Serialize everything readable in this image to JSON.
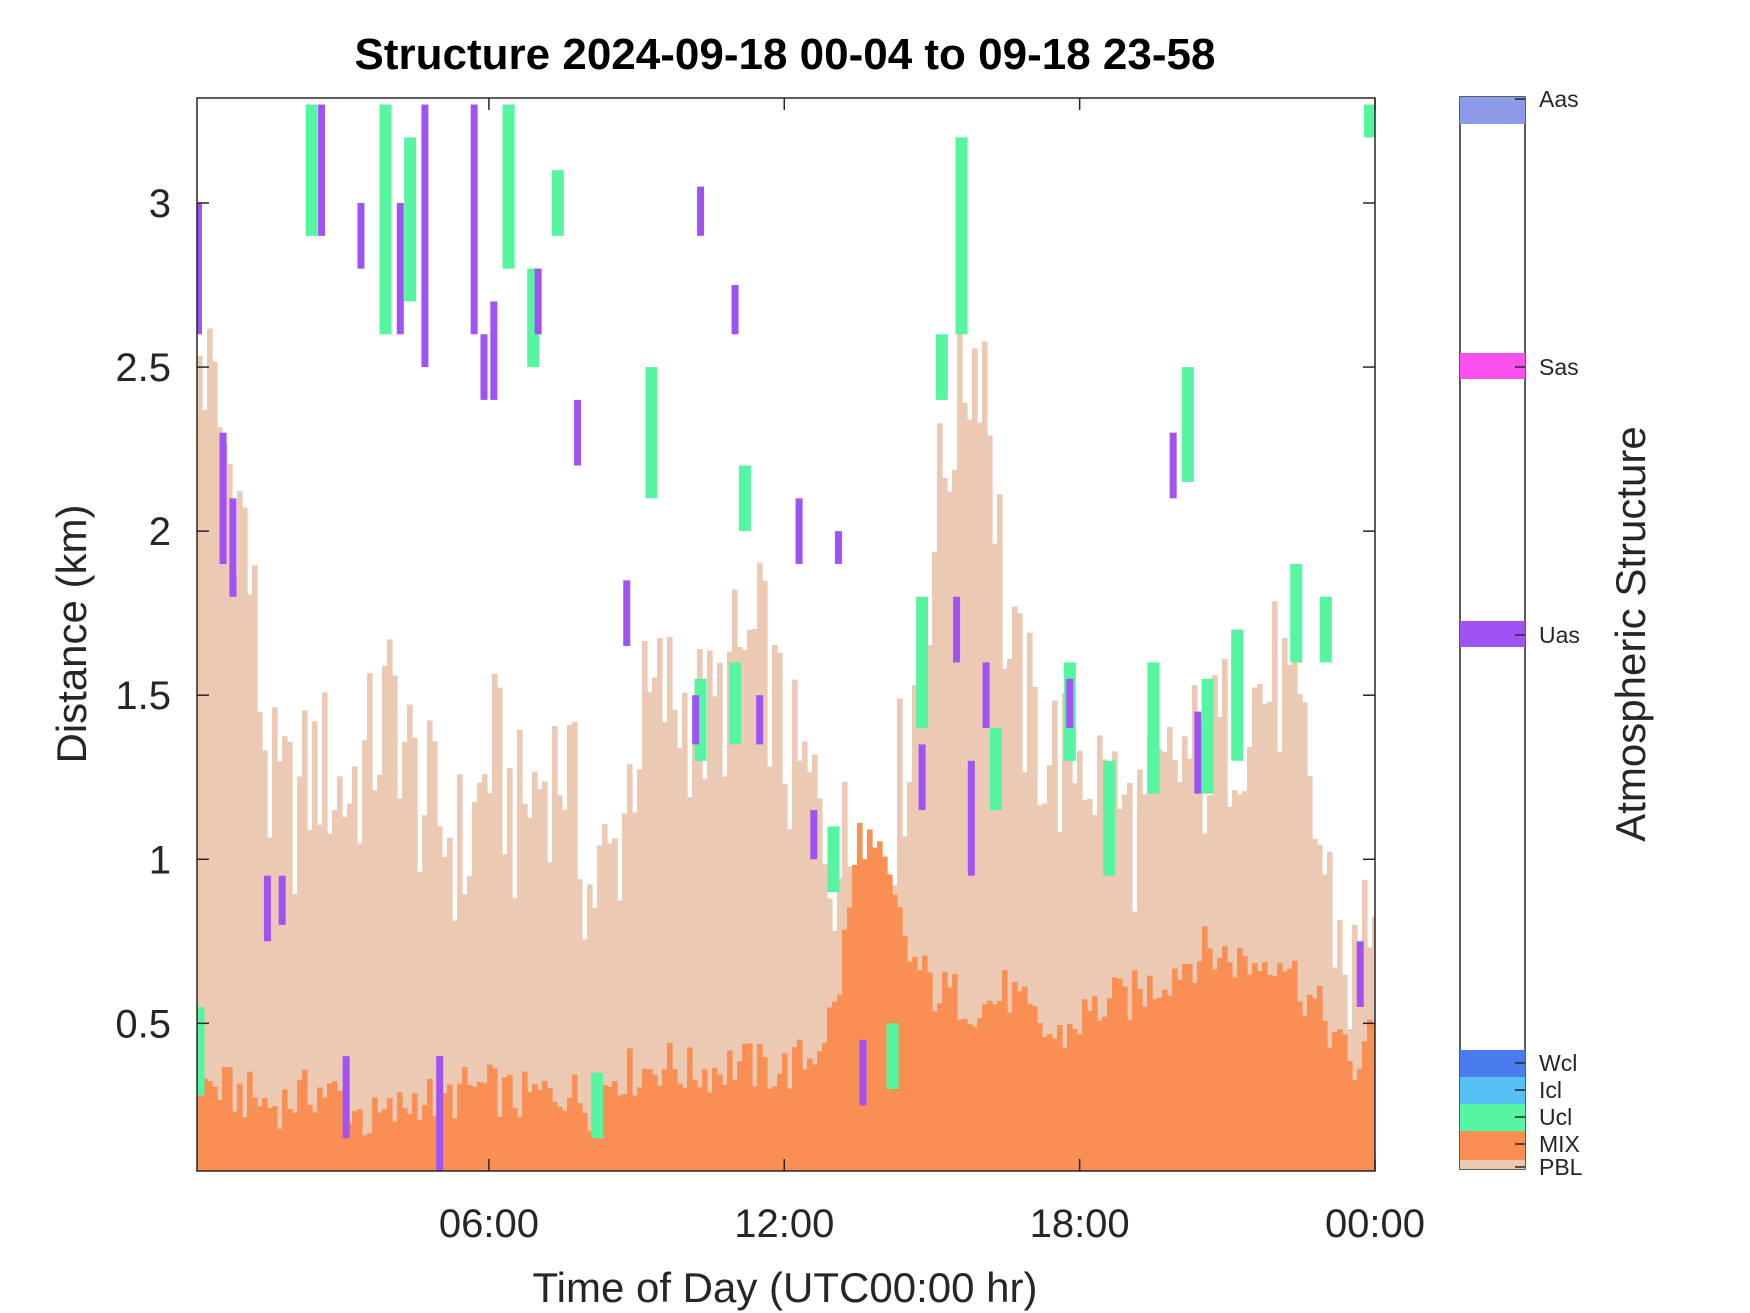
{
  "chart_data": {
    "type": "heatmap",
    "title": "Structure 2024-09-18 00-04 to 09-18 23-58",
    "xlabel": "Time of Day (UTC00:00 hr)",
    "ylabel": "Distance (km)",
    "colorbar_label": "Atmospheric Structure",
    "xlim_hours": [
      0.07,
      24.0
    ],
    "ylim_km": [
      0.05,
      3.32
    ],
    "x_ticks": [
      {
        "value": 6,
        "label": "06:00"
      },
      {
        "value": 12,
        "label": "12:00"
      },
      {
        "value": 18,
        "label": "18:00"
      },
      {
        "value": 24,
        "label": "00:00"
      }
    ],
    "y_ticks": [
      {
        "value": 0.5,
        "label": "0.5"
      },
      {
        "value": 1,
        "label": "1"
      },
      {
        "value": 1.5,
        "label": "1.5"
      },
      {
        "value": 2,
        "label": "2"
      },
      {
        "value": 2.5,
        "label": "2.5"
      },
      {
        "value": 3,
        "label": "3"
      }
    ],
    "categories": [
      {
        "code": "PBL",
        "label": "PBL",
        "color": "#ecc9b3"
      },
      {
        "code": "MIX",
        "label": "MIX",
        "color": "#f98f53"
      },
      {
        "code": "Ucl",
        "label": "Ucl",
        "color": "#55f5a1"
      },
      {
        "code": "Icl",
        "label": "Icl",
        "color": "#56c1f5"
      },
      {
        "code": "Wcl",
        "label": "Wcl",
        "color": "#4a7cf0"
      },
      {
        "code": "Uas",
        "label": "Uas",
        "color": "#a152f2"
      },
      {
        "code": "Sas",
        "label": "Sas",
        "color": "#fa50ee"
      },
      {
        "code": "Aas",
        "label": "Aas",
        "color": "#8b9be8"
      }
    ],
    "series": [
      {
        "name": "PBL",
        "unit": "km",
        "x_hours": [
          0.0,
          0.5,
          1.0,
          1.5,
          2.0,
          2.5,
          3.0,
          3.5,
          4.0,
          4.5,
          5.0,
          5.5,
          6.0,
          6.5,
          7.0,
          7.5,
          8.0,
          8.5,
          9.0,
          9.5,
          10.0,
          10.5,
          11.0,
          11.5,
          12.0,
          12.5,
          13.0,
          13.5,
          14.0,
          14.5,
          15.0,
          15.5,
          16.0,
          16.5,
          17.0,
          17.5,
          18.0,
          18.5,
          19.0,
          19.5,
          20.0,
          20.5,
          21.0,
          21.5,
          22.0,
          22.5,
          23.0,
          23.5,
          24.0
        ],
        "top_km": [
          2.6,
          2.3,
          2.0,
          1.2,
          1.15,
          1.3,
          1.2,
          1.3,
          1.5,
          1.2,
          1.1,
          1.0,
          1.35,
          1.1,
          1.25,
          1.3,
          0.9,
          1.0,
          1.4,
          1.5,
          1.45,
          1.4,
          1.6,
          1.65,
          1.3,
          1.2,
          1.0,
          1.05,
          1.0,
          1.4,
          2.0,
          2.45,
          2.6,
          1.6,
          1.4,
          1.3,
          1.35,
          1.2,
          1.1,
          1.15,
          1.3,
          1.3,
          1.4,
          1.5,
          1.55,
          1.3,
          0.9,
          0.6,
          1.0
        ]
      },
      {
        "name": "MIX",
        "unit": "km",
        "x_hours": [
          0.0,
          0.5,
          1.0,
          1.5,
          2.0,
          2.5,
          3.0,
          3.5,
          4.0,
          4.5,
          5.0,
          5.5,
          6.0,
          6.5,
          7.0,
          7.5,
          8.0,
          8.5,
          9.0,
          9.5,
          10.0,
          10.5,
          11.0,
          11.5,
          12.0,
          12.5,
          13.0,
          13.5,
          14.0,
          14.5,
          15.0,
          15.5,
          16.0,
          16.5,
          17.0,
          17.5,
          18.0,
          18.5,
          19.0,
          19.5,
          20.0,
          20.5,
          21.0,
          21.5,
          22.0,
          22.5,
          23.0,
          23.5,
          24.0
        ],
        "top_km": [
          0.32,
          0.3,
          0.28,
          0.25,
          0.27,
          0.3,
          0.27,
          0.2,
          0.22,
          0.28,
          0.26,
          0.3,
          0.3,
          0.27,
          0.28,
          0.3,
          0.25,
          0.35,
          0.35,
          0.38,
          0.35,
          0.36,
          0.38,
          0.36,
          0.36,
          0.4,
          0.55,
          1.1,
          0.95,
          0.7,
          0.6,
          0.58,
          0.55,
          0.6,
          0.5,
          0.45,
          0.52,
          0.56,
          0.58,
          0.62,
          0.68,
          0.72,
          0.7,
          0.68,
          0.72,
          0.6,
          0.5,
          0.35,
          0.5
        ]
      },
      {
        "name": "Ucl",
        "unit": "km",
        "segments": [
          {
            "x_hours": 0.1,
            "bottom_km": 0.28,
            "top_km": 0.55
          },
          {
            "x_hours": 2.4,
            "bottom_km": 2.9,
            "top_km": 3.3
          },
          {
            "x_hours": 3.9,
            "bottom_km": 2.6,
            "top_km": 3.3
          },
          {
            "x_hours": 4.4,
            "bottom_km": 2.7,
            "top_km": 3.2
          },
          {
            "x_hours": 6.4,
            "bottom_km": 2.8,
            "top_km": 3.3
          },
          {
            "x_hours": 6.9,
            "bottom_km": 2.5,
            "top_km": 2.8
          },
          {
            "x_hours": 7.4,
            "bottom_km": 2.9,
            "top_km": 3.1
          },
          {
            "x_hours": 8.2,
            "bottom_km": 0.15,
            "top_km": 0.35
          },
          {
            "x_hours": 9.3,
            "bottom_km": 2.1,
            "top_km": 2.5
          },
          {
            "x_hours": 10.3,
            "bottom_km": 1.3,
            "top_km": 1.55
          },
          {
            "x_hours": 11.0,
            "bottom_km": 1.35,
            "top_km": 1.6
          },
          {
            "x_hours": 11.2,
            "bottom_km": 2.0,
            "top_km": 2.2
          },
          {
            "x_hours": 13.0,
            "bottom_km": 0.9,
            "top_km": 1.1
          },
          {
            "x_hours": 14.2,
            "bottom_km": 0.3,
            "top_km": 0.5
          },
          {
            "x_hours": 14.8,
            "bottom_km": 1.4,
            "top_km": 1.8
          },
          {
            "x_hours": 15.2,
            "bottom_km": 2.4,
            "top_km": 2.6
          },
          {
            "x_hours": 15.6,
            "bottom_km": 2.6,
            "top_km": 3.2
          },
          {
            "x_hours": 16.3,
            "bottom_km": 1.15,
            "top_km": 1.4
          },
          {
            "x_hours": 17.8,
            "bottom_km": 1.3,
            "top_km": 1.6
          },
          {
            "x_hours": 18.6,
            "bottom_km": 0.95,
            "top_km": 1.3
          },
          {
            "x_hours": 19.5,
            "bottom_km": 1.2,
            "top_km": 1.6
          },
          {
            "x_hours": 20.2,
            "bottom_km": 2.15,
            "top_km": 2.5
          },
          {
            "x_hours": 20.6,
            "bottom_km": 1.2,
            "top_km": 1.55
          },
          {
            "x_hours": 21.2,
            "bottom_km": 1.3,
            "top_km": 1.7
          },
          {
            "x_hours": 22.4,
            "bottom_km": 1.6,
            "top_km": 1.9
          },
          {
            "x_hours": 23.0,
            "bottom_km": 1.6,
            "top_km": 1.8
          },
          {
            "x_hours": 23.9,
            "bottom_km": 3.2,
            "top_km": 3.3
          }
        ]
      },
      {
        "name": "Uas",
        "unit": "km",
        "segments": [
          {
            "x_hours": 0.1,
            "bottom_km": 2.6,
            "top_km": 3.0
          },
          {
            "x_hours": 0.6,
            "bottom_km": 1.9,
            "top_km": 2.3
          },
          {
            "x_hours": 0.8,
            "bottom_km": 1.8,
            "top_km": 2.1
          },
          {
            "x_hours": 1.5,
            "bottom_km": 0.75,
            "top_km": 0.95
          },
          {
            "x_hours": 1.8,
            "bottom_km": 0.8,
            "top_km": 0.95
          },
          {
            "x_hours": 2.6,
            "bottom_km": 2.9,
            "top_km": 3.3
          },
          {
            "x_hours": 3.1,
            "bottom_km": 0.15,
            "top_km": 0.4
          },
          {
            "x_hours": 3.4,
            "bottom_km": 2.8,
            "top_km": 3.0
          },
          {
            "x_hours": 4.2,
            "bottom_km": 2.6,
            "top_km": 3.0
          },
          {
            "x_hours": 4.7,
            "bottom_km": 2.5,
            "top_km": 3.3
          },
          {
            "x_hours": 5.0,
            "bottom_km": 0.05,
            "top_km": 0.4
          },
          {
            "x_hours": 5.7,
            "bottom_km": 2.6,
            "top_km": 3.3
          },
          {
            "x_hours": 5.9,
            "bottom_km": 2.4,
            "top_km": 2.6
          },
          {
            "x_hours": 6.1,
            "bottom_km": 2.4,
            "top_km": 2.7
          },
          {
            "x_hours": 7.0,
            "bottom_km": 2.6,
            "top_km": 2.8
          },
          {
            "x_hours": 7.8,
            "bottom_km": 2.2,
            "top_km": 2.4
          },
          {
            "x_hours": 8.8,
            "bottom_km": 1.65,
            "top_km": 1.85
          },
          {
            "x_hours": 10.2,
            "bottom_km": 1.35,
            "top_km": 1.5
          },
          {
            "x_hours": 10.3,
            "bottom_km": 2.9,
            "top_km": 3.05
          },
          {
            "x_hours": 11.0,
            "bottom_km": 2.6,
            "top_km": 2.75
          },
          {
            "x_hours": 11.5,
            "bottom_km": 1.35,
            "top_km": 1.5
          },
          {
            "x_hours": 12.3,
            "bottom_km": 1.9,
            "top_km": 2.1
          },
          {
            "x_hours": 12.6,
            "bottom_km": 1.0,
            "top_km": 1.15
          },
          {
            "x_hours": 13.1,
            "bottom_km": 1.9,
            "top_km": 2.0
          },
          {
            "x_hours": 13.6,
            "bottom_km": 0.25,
            "top_km": 0.45
          },
          {
            "x_hours": 14.8,
            "bottom_km": 1.15,
            "top_km": 1.35
          },
          {
            "x_hours": 15.5,
            "bottom_km": 1.6,
            "top_km": 1.8
          },
          {
            "x_hours": 15.8,
            "bottom_km": 0.95,
            "top_km": 1.3
          },
          {
            "x_hours": 16.1,
            "bottom_km": 1.4,
            "top_km": 1.6
          },
          {
            "x_hours": 17.8,
            "bottom_km": 1.4,
            "top_km": 1.55
          },
          {
            "x_hours": 19.9,
            "bottom_km": 2.1,
            "top_km": 2.3
          },
          {
            "x_hours": 20.4,
            "bottom_km": 1.2,
            "top_km": 1.45
          },
          {
            "x_hours": 23.7,
            "bottom_km": 0.55,
            "top_km": 0.75
          }
        ]
      }
    ],
    "grid": false,
    "legend": "colorbar-right"
  }
}
